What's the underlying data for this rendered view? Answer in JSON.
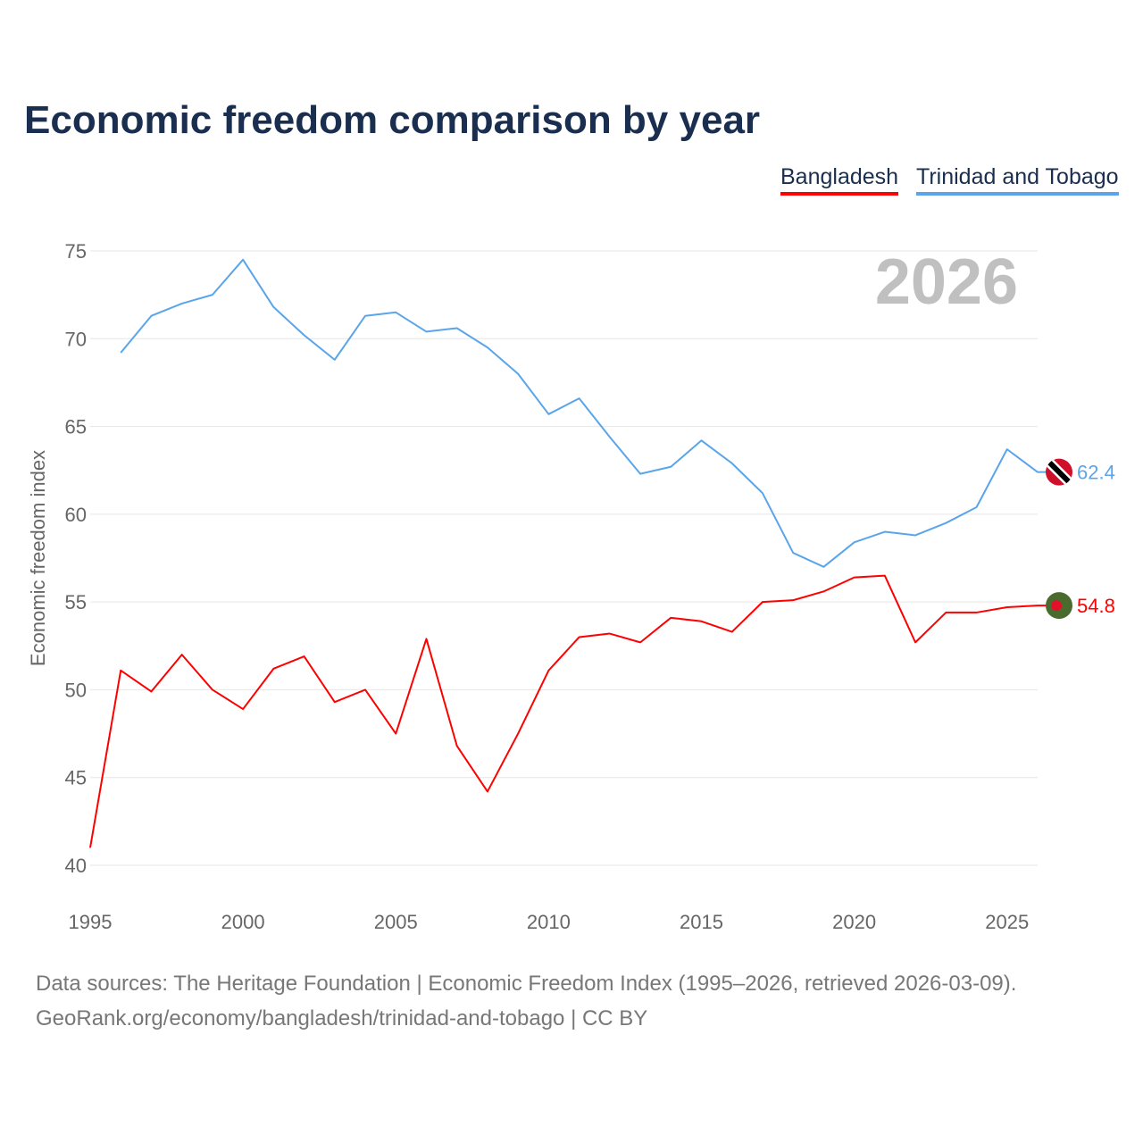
{
  "chart_data": {
    "type": "line",
    "title": "Economic freedom comparison by year",
    "xlabel": "",
    "ylabel": "Economic freedom index",
    "xlim": [
      1995,
      2026
    ],
    "ylim": [
      40,
      75
    ],
    "x_ticks": [
      1995,
      2000,
      2005,
      2010,
      2015,
      2020,
      2025
    ],
    "y_ticks": [
      40,
      45,
      50,
      55,
      60,
      65,
      70,
      75
    ],
    "grid": true,
    "legend_position": "top-right",
    "year_watermark": "2026",
    "series": [
      {
        "name": "Bangladesh",
        "color": "#ff0000",
        "end_label": "54.8",
        "flag_icon": "bangladesh-flag",
        "x": [
          1995,
          1996,
          1997,
          1998,
          1999,
          2000,
          2001,
          2002,
          2003,
          2004,
          2005,
          2006,
          2007,
          2008,
          2009,
          2010,
          2011,
          2012,
          2013,
          2014,
          2015,
          2016,
          2017,
          2018,
          2019,
          2020,
          2021,
          2022,
          2023,
          2024,
          2025,
          2026
        ],
        "values": [
          41.0,
          51.1,
          49.9,
          52.0,
          50.0,
          48.9,
          51.2,
          51.9,
          49.3,
          50.0,
          47.5,
          52.9,
          46.8,
          44.2,
          47.5,
          51.1,
          53.0,
          53.2,
          52.7,
          54.1,
          53.9,
          53.3,
          55.0,
          55.1,
          55.6,
          56.4,
          56.5,
          52.7,
          54.4,
          54.4,
          54.7,
          54.8
        ]
      },
      {
        "name": "Trinidad and Tobago",
        "color": "#5aa5ea",
        "end_label": "62.4",
        "flag_icon": "trinidad-and-tobago-flag",
        "x": [
          1996,
          1997,
          1998,
          1999,
          2000,
          2001,
          2002,
          2003,
          2004,
          2005,
          2006,
          2007,
          2008,
          2009,
          2010,
          2011,
          2012,
          2013,
          2014,
          2015,
          2016,
          2017,
          2018,
          2019,
          2020,
          2021,
          2022,
          2023,
          2024,
          2025,
          2026
        ],
        "values": [
          69.2,
          71.3,
          72.0,
          72.5,
          74.5,
          71.8,
          70.2,
          68.8,
          71.3,
          71.5,
          70.4,
          70.6,
          69.5,
          68.0,
          65.7,
          66.6,
          64.4,
          62.3,
          62.7,
          64.2,
          62.9,
          61.2,
          57.8,
          57.0,
          58.4,
          59.0,
          58.8,
          59.5,
          60.4,
          63.7,
          62.4
        ]
      }
    ]
  },
  "footer": {
    "line1": "Data sources: The Heritage Foundation | Economic Freedom Index (1995–2026, retrieved 2026-03-09).",
    "line2": "GeoRank.org/economy/bangladesh/trinidad-and-tobago | CC BY"
  }
}
